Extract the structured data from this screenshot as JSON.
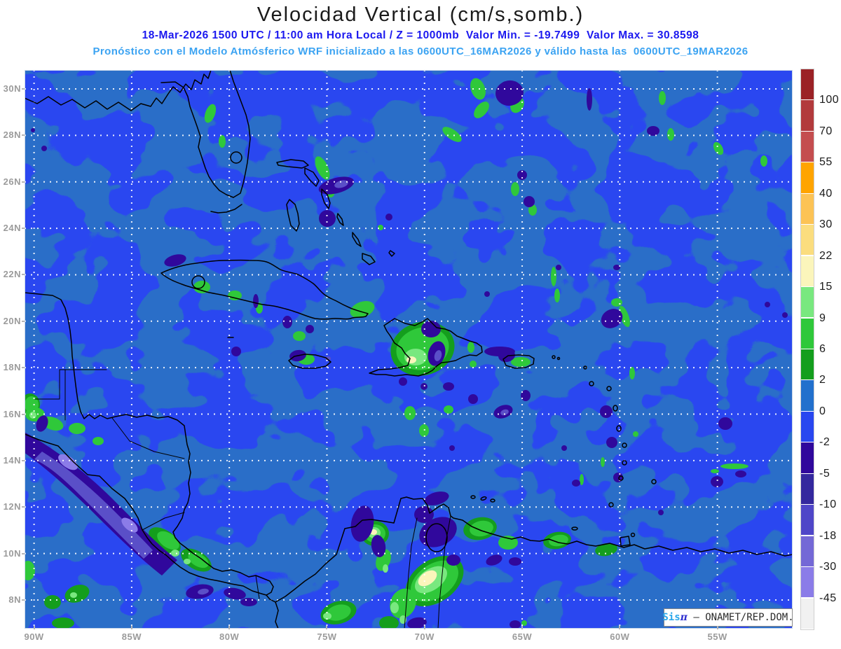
{
  "header": {
    "title": "Velocidad Vertical (cm/s,somb.)",
    "subtitle1": "18-Mar-2026 1500 UTC / 11:00 am Hora Local / Z = 1000mb  Valor Min. = -19.7499  Valor Max. = 30.8598",
    "subtitle2": "Pronóstico con el Modelo Atmósferico WRF inicializado a las 0600UTC_16MAR2026 y válido hasta las  0600UTC_19MAR2026"
  },
  "watermark": {
    "brand": "Sis",
    "pi": "π",
    "rest": " – ONAMET/REP.DOM."
  },
  "colors": {
    "subtitle1": "#1b18ef",
    "subtitle2": "#3ba3f2",
    "axis_labels": "#9b9b9b",
    "map_base_positive": "#2a6ec8",
    "map_base_negative": "#2947f0"
  },
  "chart_data": {
    "type": "heatmap",
    "subtype": "filled-contour-weather-map",
    "title": "Velocidad Vertical (cm/s,somb.)",
    "variable": "Velocidad Vertical",
    "units": "cm/s",
    "pressure_level": "1000mb",
    "valid_time": "18-Mar-2026 1500 UTC / 11:00 am Hora Local",
    "model": "WRF",
    "model_init": "0600UTC_16MAR2026",
    "model_valid_until": "0600UTC_19MAR2026",
    "value_min": -19.7499,
    "value_max": 30.8598,
    "region": "Caribbean / Gulf of Mexico / Central America / northern South America",
    "lat_ticks": [
      "30N",
      "28N",
      "26N",
      "24N",
      "22N",
      "20N",
      "18N",
      "16N",
      "14N",
      "12N",
      "10N",
      "8N"
    ],
    "lon_ticks": [
      "90W",
      "85W",
      "80W",
      "75W",
      "70W",
      "65W",
      "60W",
      "55W"
    ],
    "grid": "white dotted graticule every 2 deg lat / 5 deg lon",
    "colorbar": {
      "boundary_labels": [
        "100",
        "70",
        "55",
        "40",
        "30",
        "22",
        "15",
        "9",
        "6",
        "2",
        "0",
        "-2",
        "-5",
        "-10",
        "-18",
        "-30",
        "-45"
      ],
      "segment_colors": [
        "#9b2226",
        "#b23a3c",
        "#c44d4f",
        "#ffa400",
        "#fcc355",
        "#fbdd7e",
        "#fbf5bb",
        "#79e87f",
        "#2fc83a",
        "#149e1d",
        "#2270cd",
        "#2947f0",
        "#30089c",
        "#34289e",
        "#4f46c8",
        "#7468d6",
        "#8b7ce8",
        "#f1f1f1"
      ]
    }
  }
}
